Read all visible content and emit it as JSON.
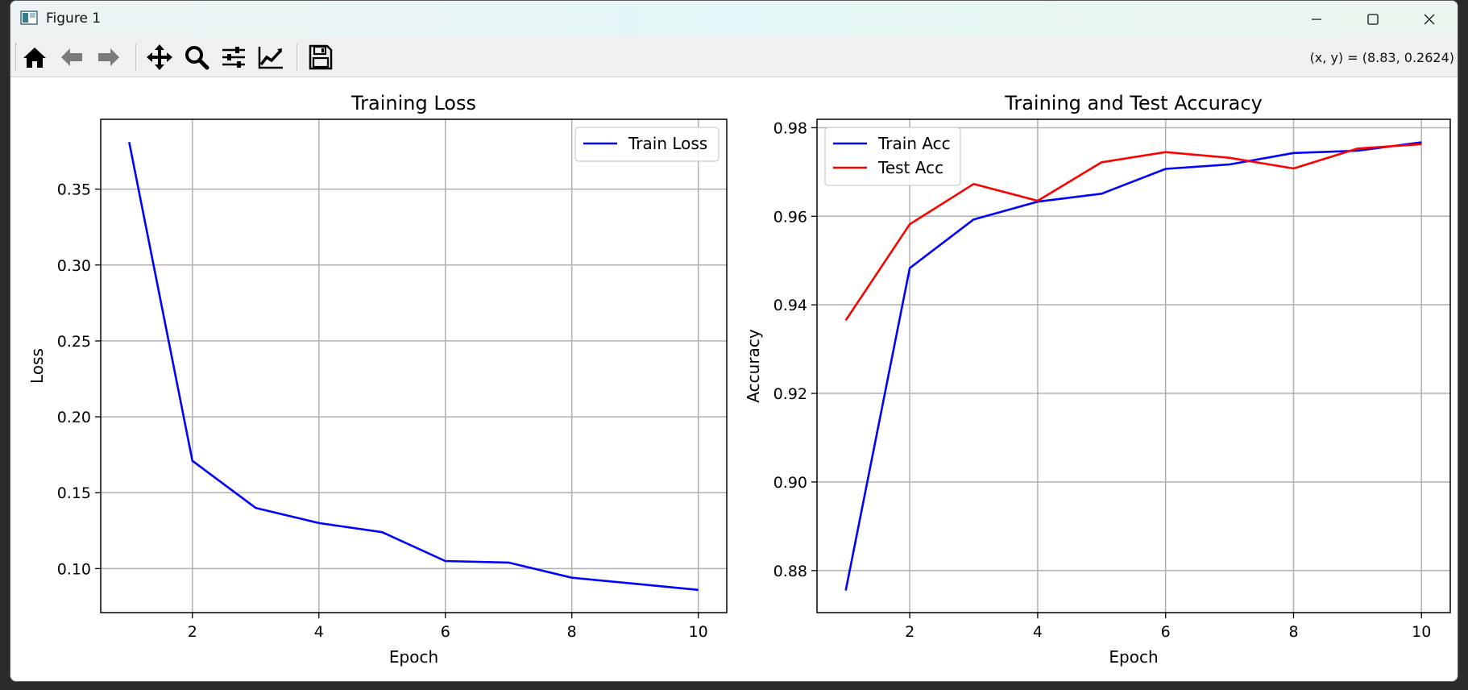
{
  "window": {
    "title": "Figure 1",
    "minimize_icon": "minimize-icon",
    "maximize_icon": "maximize-icon",
    "close_icon": "close-icon"
  },
  "toolbar": {
    "icons": [
      "home-icon",
      "back-arrow-icon",
      "forward-arrow-icon",
      "pan-move-icon",
      "zoom-magnifier-icon",
      "configure-subplots-icon",
      "edit-axis-icon",
      "save-disk-icon"
    ],
    "coords_text": "(x, y) = (8.83, 0.2624)"
  },
  "colors": {
    "train": "#0000ff",
    "test": "#ff0000",
    "grid": "#b0b0b0"
  },
  "chart_data": [
    {
      "type": "line",
      "title": "Training Loss",
      "xlabel": "Epoch",
      "ylabel": "Loss",
      "x": [
        1,
        2,
        3,
        4,
        5,
        6,
        7,
        8,
        9,
        10
      ],
      "series": [
        {
          "name": "Train Loss",
          "color": "#0000ff",
          "values": [
            0.381,
            0.171,
            0.14,
            0.13,
            0.124,
            0.105,
            0.104,
            0.094,
            0.09,
            0.086
          ]
        }
      ],
      "xlim": [
        0.55,
        10.45
      ],
      "ylim": [
        0.071,
        0.396
      ],
      "xticks": [
        2,
        4,
        6,
        8,
        10
      ],
      "yticks": [
        0.1,
        0.15,
        0.2,
        0.25,
        0.3,
        0.35
      ],
      "xtick_labels": [
        "2",
        "4",
        "6",
        "8",
        "10"
      ],
      "ytick_labels": [
        "0.10",
        "0.15",
        "0.20",
        "0.25",
        "0.30",
        "0.35"
      ],
      "grid": true,
      "legend": "upper right"
    },
    {
      "type": "line",
      "title": "Training and Test Accuracy",
      "xlabel": "Epoch",
      "ylabel": "Accuracy",
      "x": [
        1,
        2,
        3,
        4,
        5,
        6,
        7,
        8,
        9,
        10
      ],
      "series": [
        {
          "name": "Train Acc",
          "color": "#0000ff",
          "values": [
            0.8755,
            0.9483,
            0.9593,
            0.9633,
            0.9651,
            0.9707,
            0.9717,
            0.9743,
            0.9748,
            0.9767
          ]
        },
        {
          "name": "Test Acc",
          "color": "#ff0000",
          "values": [
            0.9365,
            0.9582,
            0.9673,
            0.9635,
            0.9722,
            0.9745,
            0.9732,
            0.9708,
            0.9753,
            0.9763
          ]
        }
      ],
      "xlim": [
        0.55,
        10.45
      ],
      "ylim": [
        0.8705,
        0.9819
      ],
      "xticks": [
        2,
        4,
        6,
        8,
        10
      ],
      "yticks": [
        0.88,
        0.9,
        0.92,
        0.94,
        0.96,
        0.98
      ],
      "xtick_labels": [
        "2",
        "4",
        "6",
        "8",
        "10"
      ],
      "ytick_labels": [
        "0.88",
        "0.90",
        "0.92",
        "0.94",
        "0.96",
        "0.98"
      ],
      "grid": true,
      "legend": "upper left"
    }
  ]
}
